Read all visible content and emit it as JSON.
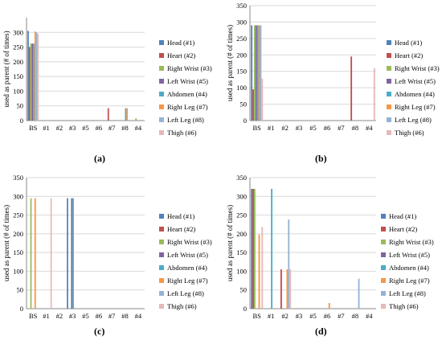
{
  "legend": [
    {
      "label": "Head (#1)",
      "color": "#4F81BD"
    },
    {
      "label": "Heart (#2)",
      "color": "#C0504D"
    },
    {
      "label": "Right Wrist (#3)",
      "color": "#9BBB59"
    },
    {
      "label": "Left Wrist (#5)",
      "color": "#8064A2"
    },
    {
      "label": "Abdomen (#4)",
      "color": "#4BACC6"
    },
    {
      "label": "Right Leg (#7)",
      "color": "#F79646"
    },
    {
      "label": "Left Leg (#8)",
      "color": "#95B3D7"
    },
    {
      "label": "Thigh (#6)",
      "color": "#E6B9B8"
    }
  ],
  "captions": [
    "(a)",
    "(b)",
    "(c)",
    "(d)"
  ],
  "chart_data": [
    {
      "type": "bar",
      "panel": "(a)",
      "categories": [
        "BS",
        "#1",
        "#2",
        "#3",
        "#5",
        "#6",
        "#7",
        "#8",
        "#4"
      ],
      "ylabel": "used as parent (# of times)",
      "ylim": [
        0,
        350
      ],
      "yticks": [
        0,
        50,
        100,
        150,
        200,
        250,
        300
      ],
      "series": [
        {
          "name": "Head (#1)",
          "values": [
            305,
            0,
            0,
            0,
            0,
            0,
            0,
            0,
            0
          ]
        },
        {
          "name": "Heart (#2)",
          "values": [
            250,
            0,
            0,
            0,
            0,
            0,
            42,
            0,
            0
          ]
        },
        {
          "name": "Right Wrist (#3)",
          "values": [
            262,
            0,
            0,
            0,
            0,
            0,
            0,
            0,
            8
          ]
        },
        {
          "name": "Left Wrist (#5)",
          "values": [
            262,
            0,
            0,
            0,
            0,
            0,
            0,
            0,
            0
          ]
        },
        {
          "name": "Abdomen (#4)",
          "values": [
            262,
            0,
            0,
            0,
            0,
            0,
            0,
            42,
            0
          ]
        },
        {
          "name": "Right Leg (#7)",
          "values": [
            303,
            0,
            0,
            0,
            0,
            0,
            0,
            42,
            0
          ]
        },
        {
          "name": "Left Leg (#8)",
          "values": [
            300,
            0,
            0,
            0,
            0,
            0,
            0,
            0,
            0
          ]
        },
        {
          "name": "Thigh (#6)",
          "values": [
            295,
            0,
            0,
            0,
            0,
            0,
            0,
            0,
            0
          ]
        }
      ]
    },
    {
      "type": "bar",
      "panel": "(b)",
      "categories": [
        "BS",
        "#1",
        "#2",
        "#3",
        "#5",
        "#6",
        "#7",
        "#8",
        "#4"
      ],
      "ylabel": "used as parent (# of times)",
      "ylim": [
        0,
        350
      ],
      "yticks": [
        0,
        50,
        100,
        150,
        200,
        250,
        300,
        350
      ],
      "series": [
        {
          "name": "Head (#1)",
          "values": [
            290,
            0,
            0,
            0,
            0,
            0,
            0,
            0,
            0
          ]
        },
        {
          "name": "Heart (#2)",
          "values": [
            95,
            0,
            0,
            0,
            0,
            0,
            0,
            195,
            0
          ]
        },
        {
          "name": "Right Wrist (#3)",
          "values": [
            290,
            0,
            0,
            0,
            0,
            0,
            0,
            0,
            0
          ]
        },
        {
          "name": "Left Wrist (#5)",
          "values": [
            290,
            0,
            0,
            0,
            0,
            0,
            0,
            0,
            0
          ]
        },
        {
          "name": "Abdomen (#4)",
          "values": [
            290,
            0,
            0,
            0,
            0,
            0,
            0,
            0,
            0
          ]
        },
        {
          "name": "Right Leg (#7)",
          "values": [
            290,
            0,
            0,
            0,
            0,
            0,
            0,
            0,
            0
          ]
        },
        {
          "name": "Left Leg (#8)",
          "values": [
            290,
            0,
            0,
            0,
            0,
            0,
            0,
            0,
            0
          ]
        },
        {
          "name": "Thigh (#6)",
          "values": [
            128,
            0,
            0,
            0,
            0,
            0,
            0,
            0,
            160
          ]
        }
      ]
    },
    {
      "type": "bar",
      "panel": "(c)",
      "categories": [
        "BS",
        "#1",
        "#2",
        "#3",
        "#5",
        "#6",
        "#7",
        "#8",
        "#4"
      ],
      "ylabel": "used as parent (# of times)",
      "ylim": [
        0,
        350
      ],
      "yticks": [
        0,
        50,
        100,
        150,
        200,
        250,
        300,
        350
      ],
      "series": [
        {
          "name": "Head (#1)",
          "values": [
            0,
            0,
            0,
            295,
            0,
            0,
            0,
            0,
            0
          ]
        },
        {
          "name": "Heart (#2)",
          "values": [
            0,
            0,
            0,
            0,
            0,
            0,
            0,
            0,
            0
          ]
        },
        {
          "name": "Right Wrist (#3)",
          "values": [
            295,
            0,
            0,
            0,
            0,
            0,
            0,
            0,
            0
          ]
        },
        {
          "name": "Left Wrist (#5)",
          "values": [
            0,
            0,
            0,
            295,
            0,
            0,
            0,
            0,
            0
          ]
        },
        {
          "name": "Abdomen (#4)",
          "values": [
            0,
            0,
            0,
            295,
            0,
            0,
            0,
            0,
            0
          ]
        },
        {
          "name": "Right Leg (#7)",
          "values": [
            295,
            0,
            0,
            0,
            0,
            0,
            0,
            0,
            0
          ]
        },
        {
          "name": "Left Leg (#8)",
          "values": [
            0,
            0,
            0,
            0,
            0,
            0,
            0,
            0,
            0
          ]
        },
        {
          "name": "Thigh (#6)",
          "values": [
            0,
            295,
            0,
            0,
            0,
            0,
            0,
            0,
            0
          ]
        }
      ]
    },
    {
      "type": "bar",
      "panel": "(d)",
      "categories": [
        "BS",
        "#1",
        "#2",
        "#3",
        "#5",
        "#6",
        "#7",
        "#8",
        "#4"
      ],
      "ylabel": "used as parent (# of times)",
      "ylim": [
        0,
        350
      ],
      "yticks": [
        0,
        50,
        100,
        150,
        200,
        250,
        300,
        350
      ],
      "series": [
        {
          "name": "Head (#1)",
          "values": [
            320,
            0,
            0,
            0,
            0,
            0,
            0,
            0,
            0
          ]
        },
        {
          "name": "Heart (#2)",
          "values": [
            320,
            0,
            105,
            0,
            0,
            0,
            0,
            0,
            0
          ]
        },
        {
          "name": "Right Wrist (#3)",
          "values": [
            320,
            0,
            0,
            0,
            0,
            0,
            0,
            0,
            0
          ]
        },
        {
          "name": "Left Wrist (#5)",
          "values": [
            0,
            0,
            0,
            0,
            0,
            0,
            0,
            0,
            0
          ]
        },
        {
          "name": "Abdomen (#4)",
          "values": [
            0,
            320,
            0,
            0,
            0,
            0,
            0,
            0,
            0
          ]
        },
        {
          "name": "Right Leg (#7)",
          "values": [
            198,
            0,
            105,
            0,
            0,
            15,
            0,
            0,
            0
          ]
        },
        {
          "name": "Left Leg (#8)",
          "values": [
            0,
            0,
            238,
            0,
            0,
            0,
            0,
            80,
            0
          ]
        },
        {
          "name": "Thigh (#6)",
          "values": [
            218,
            0,
            105,
            0,
            0,
            0,
            0,
            0,
            0
          ]
        }
      ]
    }
  ]
}
